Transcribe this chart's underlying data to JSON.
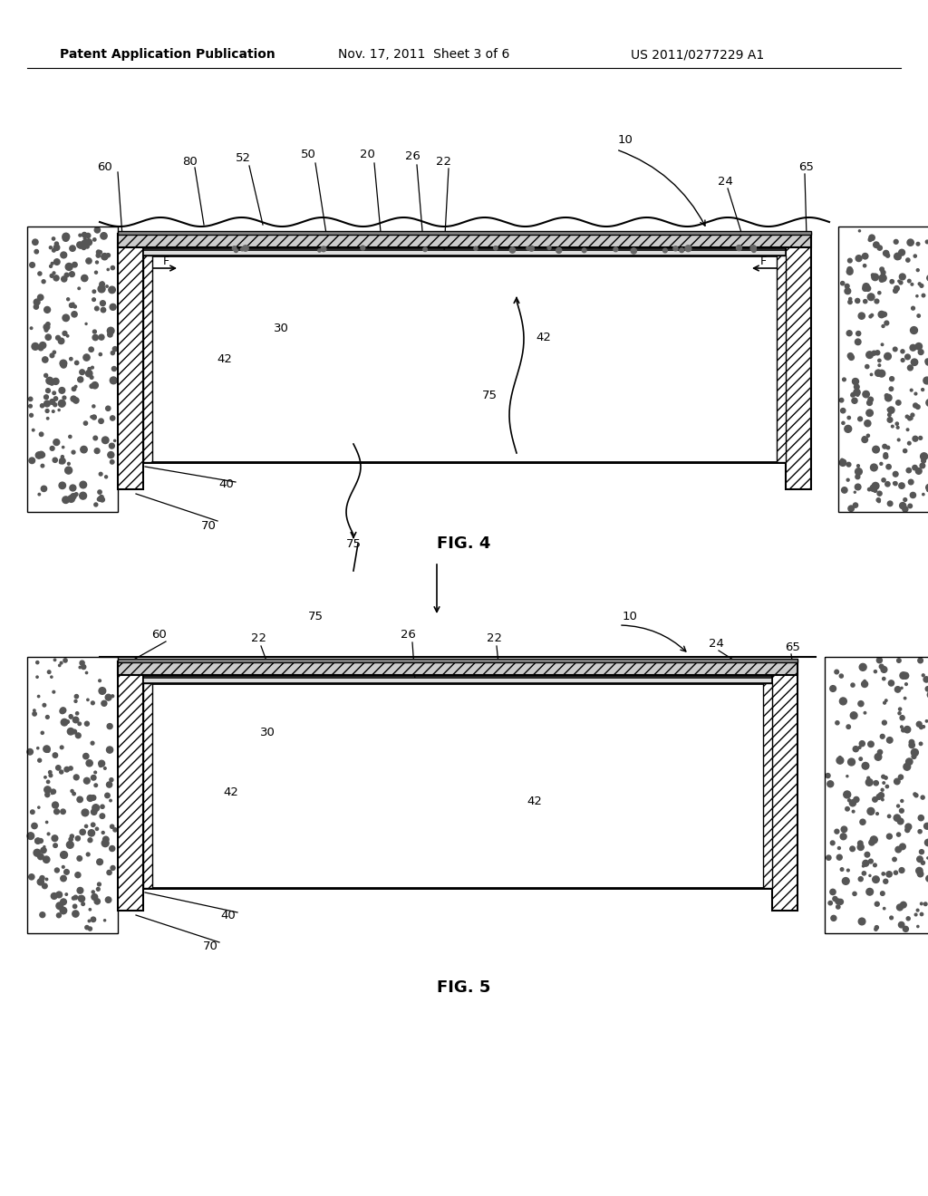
{
  "bg_color": "#ffffff",
  "header_text1": "Patent Application Publication",
  "header_text2": "Nov. 17, 2011  Sheet 3 of 6",
  "header_text3": "US 2011/0277229 A1",
  "fig4_label": "FIG. 4",
  "fig5_label": "FIG. 5",
  "line_color": "#000000",
  "hatch_color": "#000000",
  "gravel_color": "#aaaaaa"
}
